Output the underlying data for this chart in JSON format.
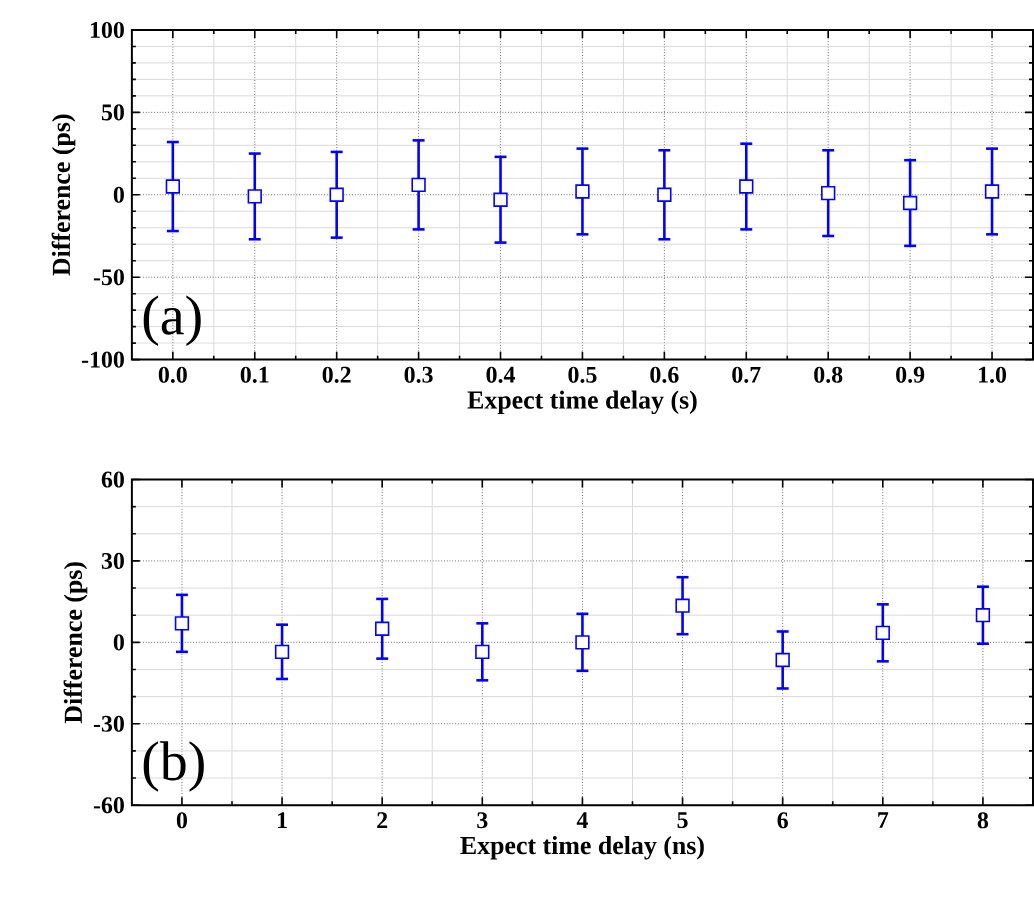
{
  "chart_data": [
    {
      "type": "scatter",
      "xlabel": "Expect  time delay (s)",
      "ylabel": "Difference (ps)",
      "annotations": [
        "(a)"
      ],
      "marker": "square",
      "grid": true,
      "color": "#0000ff",
      "x": [
        0.0,
        0.1,
        0.2,
        0.3,
        0.4,
        0.5,
        0.6,
        0.7,
        0.8,
        0.9,
        1.0
      ],
      "values": [
        5,
        -1,
        0,
        6,
        -3,
        2,
        0,
        5,
        1,
        -5,
        2
      ],
      "errors": [
        27,
        26,
        26,
        27,
        26,
        26,
        27,
        26,
        26,
        26,
        26
      ],
      "xlim": [
        -0.05,
        1.05
      ],
      "xticks": [
        {
          "value": 0,
          "label": "0.0"
        },
        0.1,
        0.2,
        0.3,
        0.4,
        0.5,
        0.6,
        0.7,
        0.8,
        0.9,
        {
          "value": 1,
          "label": "1.0"
        }
      ],
      "ylim": [
        -100,
        100
      ],
      "yticks": [
        -100,
        -50,
        0,
        50,
        100
      ]
    },
    {
      "type": "scatter",
      "xlabel": "Expect  time delay (ns)",
      "ylabel": "Difference (ps)",
      "annotations": [
        "(b)"
      ],
      "marker": "square",
      "grid": true,
      "color": "#0000ff",
      "x": [
        0,
        1,
        2,
        3,
        4,
        5,
        6,
        7,
        8
      ],
      "values": [
        7,
        -3.5,
        5,
        -3.5,
        0,
        13.5,
        -6.5,
        3.5,
        10
      ],
      "errors": [
        10.5,
        10,
        11,
        10.5,
        10.5,
        10.5,
        10.5,
        10.5,
        10.5
      ],
      "xlim": [
        -0.5,
        8.5
      ],
      "xticks": [
        0,
        1,
        2,
        3,
        4,
        5,
        6,
        7,
        8
      ],
      "ylim": [
        -60,
        60
      ],
      "yticks": [
        -60,
        -30,
        0,
        30,
        60
      ]
    }
  ]
}
